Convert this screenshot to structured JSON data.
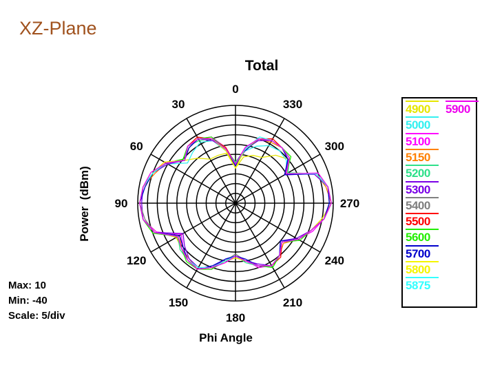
{
  "page_title": "XZ-Plane",
  "stats": {
    "max": "Max: 10",
    "min": "Min: -40",
    "scale": "Scale: 5/div"
  },
  "chart_data": {
    "type": "polar-line",
    "title": "Total",
    "xlabel": "Phi Angle",
    "ylabel": "Power  (dBm)",
    "radial_range": [
      -40,
      10
    ],
    "radial_step": 5,
    "angle_direction": "counter-clockwise",
    "zero_angle": "top",
    "angle_tick_labels": [
      "0",
      "30",
      "60",
      "90",
      "120",
      "150",
      "180",
      "210",
      "240",
      "270",
      "300",
      "330"
    ],
    "grid": true,
    "legend_position": "right",
    "angles": [
      0,
      10,
      20,
      30,
      40,
      50,
      60,
      70,
      80,
      90,
      100,
      110,
      120,
      130,
      140,
      150,
      160,
      170,
      180,
      190,
      200,
      210,
      220,
      230,
      240,
      250,
      260,
      270,
      280,
      290,
      300,
      310,
      320,
      330,
      340,
      350
    ],
    "series": [
      {
        "name": "4900",
        "color": "#e6e600",
        "values": [
          -22,
          -14,
          -14,
          -14,
          -10,
          -6,
          1,
          5,
          8,
          9,
          8,
          3,
          -5,
          -4,
          -2,
          -1,
          -5,
          -10,
          -13,
          -10,
          -6,
          -3,
          -5,
          -9,
          -3,
          1,
          5,
          9,
          8,
          4,
          -9,
          -5,
          -8,
          -13,
          -14,
          -16
        ]
      },
      {
        "name": "5000",
        "color": "#33f0f0",
        "values": [
          -19,
          -13,
          -6,
          -4,
          -6,
          -8,
          0,
          5,
          8,
          9,
          8,
          4,
          -6,
          -4,
          -2,
          -1,
          -5,
          -11,
          -13,
          -10,
          -6,
          -3,
          -5,
          -9,
          -3,
          1,
          6,
          9,
          8,
          4,
          -10,
          -6,
          -5,
          -6,
          -9,
          -13
        ]
      },
      {
        "name": "5100",
        "color": "#ff00ff",
        "values": [
          -20,
          -11,
          -4,
          -2,
          -2,
          -6,
          1,
          5,
          8,
          9,
          8,
          3,
          -8,
          -5,
          -2,
          -1,
          -4,
          -10,
          -12,
          -10,
          -5,
          -3,
          -5,
          -9,
          -3,
          2,
          6,
          9,
          8,
          4,
          -11,
          -4,
          -3,
          -3,
          -5,
          -11
        ]
      },
      {
        "name": "5150",
        "color": "#ff8000",
        "values": [
          -20,
          -12,
          -5,
          -2,
          -3,
          -6,
          1,
          4,
          8,
          9,
          8,
          4,
          -7,
          -4,
          -3,
          -1,
          -5,
          -10,
          -13,
          -10,
          -6,
          -3,
          -5,
          -8,
          -3,
          1,
          6,
          9,
          7,
          4,
          -10,
          -4,
          -3,
          -4,
          -5,
          -12
        ]
      },
      {
        "name": "5200",
        "color": "#2ee08a",
        "values": [
          -19,
          -12,
          -5,
          -3,
          -2,
          -5,
          1,
          5,
          8,
          9,
          8,
          4,
          -6,
          -3,
          -2,
          -1,
          -5,
          -10,
          -13,
          -9,
          -6,
          -2,
          -5,
          -9,
          -3,
          1,
          6,
          9,
          8,
          4,
          -9,
          -4,
          -3,
          -3,
          -5,
          -12
        ]
      },
      {
        "name": "5300",
        "color": "#7a00e6",
        "values": [
          -21,
          -12,
          -6,
          -2,
          -2,
          -6,
          0,
          5,
          8,
          8,
          8,
          4,
          -9,
          -6,
          -3,
          -2,
          -5,
          -11,
          -13,
          -10,
          -7,
          -3,
          -5,
          -10,
          -4,
          1,
          6,
          8,
          8,
          3,
          -10,
          -5,
          -3,
          -3,
          -6,
          -12
        ]
      },
      {
        "name": "5400",
        "color": "#808080",
        "values": [
          -20,
          -12,
          -5,
          -2,
          -2,
          -6,
          1,
          5,
          8,
          9,
          7,
          4,
          -6,
          -4,
          -2,
          -1,
          -5,
          -10,
          -14,
          -10,
          -6,
          -3,
          -5,
          -9,
          -3,
          1,
          6,
          9,
          8,
          4,
          -10,
          -4,
          -3,
          -3,
          -5,
          -12
        ]
      },
      {
        "name": "5500",
        "color": "#ff0000",
        "values": [
          -20,
          -11,
          -5,
          -1,
          -2,
          -6,
          2,
          5,
          8,
          9,
          8,
          4,
          -6,
          -4,
          -2,
          -1,
          -5,
          -10,
          -13,
          -10,
          -6,
          -3,
          -4,
          -9,
          -3,
          1,
          6,
          9,
          8,
          4,
          -10,
          -4,
          -3,
          -2,
          -5,
          -12
        ]
      },
      {
        "name": "5600",
        "color": "#22ee00",
        "values": [
          -20,
          -12,
          -4,
          -2,
          -2,
          -5,
          1,
          5,
          8,
          9,
          8,
          5,
          -6,
          -4,
          -1,
          -1,
          -4,
          -10,
          -13,
          -10,
          -6,
          -2,
          -5,
          -9,
          -2,
          1,
          6,
          9,
          8,
          4,
          -10,
          -3,
          -3,
          -3,
          -5,
          -12
        ]
      },
      {
        "name": "5700",
        "color": "#0000cc",
        "values": [
          -21,
          -13,
          -5,
          -2,
          -3,
          -6,
          1,
          5,
          7,
          9,
          8,
          4,
          -7,
          -5,
          -2,
          -1,
          -6,
          -11,
          -13,
          -11,
          -6,
          -3,
          -5,
          -10,
          -3,
          1,
          6,
          8,
          8,
          4,
          -11,
          -5,
          -3,
          -3,
          -5,
          -13
        ]
      },
      {
        "name": "5800",
        "color": "#f5f500",
        "values": [
          -22,
          -13,
          -5,
          -2,
          -2,
          -6,
          2,
          5,
          8,
          9,
          8,
          4,
          -6,
          -4,
          -2,
          -1,
          -5,
          -10,
          -12,
          -10,
          -6,
          -3,
          -5,
          -9,
          -3,
          1,
          6,
          9,
          8,
          4,
          -10,
          -4,
          -3,
          -3,
          -5,
          -12
        ]
      },
      {
        "name": "5875",
        "color": "#33ffff",
        "values": [
          -20,
          -12,
          -5,
          -2,
          -2,
          -6,
          1,
          5,
          8,
          9,
          8,
          4,
          -6,
          -4,
          -2,
          -2,
          -5,
          -10,
          -13,
          -10,
          -6,
          -3,
          -5,
          -9,
          -3,
          1,
          6,
          9,
          8,
          4,
          -10,
          -4,
          -3,
          -3,
          -4,
          -12
        ]
      },
      {
        "name": "5900",
        "color": "#ee00ee",
        "values": [
          -20,
          -12,
          -5,
          -2,
          -2,
          -6,
          1,
          6,
          8,
          9,
          8,
          4,
          -6,
          -4,
          -2,
          -1,
          -5,
          -9,
          -13,
          -10,
          -6,
          -3,
          -5,
          -9,
          -3,
          1,
          6,
          9,
          8,
          5,
          -10,
          -4,
          -3,
          -3,
          -5,
          -11
        ]
      }
    ]
  }
}
